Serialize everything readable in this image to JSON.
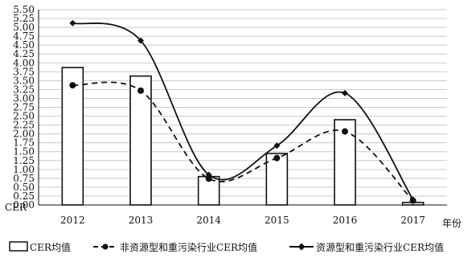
{
  "chart_data": {
    "type": "bar",
    "categories": [
      "2012",
      "2013",
      "2014",
      "2015",
      "2016",
      "2017"
    ],
    "xlabel": "年份",
    "ylabel": "CER",
    "ylim": [
      0,
      5.5
    ],
    "yticks": [
      "0.00",
      "0.25",
      "0.50",
      "0.75",
      "1.00",
      "1.25",
      "1.50",
      "1.75",
      "2.00",
      "2.25",
      "2.50",
      "2.75",
      "3.00",
      "3.25",
      "3.50",
      "3.75",
      "4.00",
      "4.25",
      "4.50",
      "4.75",
      "5.00",
      "5.25",
      "5.50"
    ],
    "grid": true,
    "legend_position": "bottom",
    "series": [
      {
        "name": "CER均值",
        "kind": "bar",
        "values": [
          3.87,
          3.63,
          0.8,
          1.45,
          2.4,
          0.07
        ]
      },
      {
        "name": "非资源型和重污染行业CER均值",
        "kind": "line-dashed-circle",
        "values": [
          3.37,
          3.22,
          0.74,
          1.32,
          2.07,
          0.12
        ]
      },
      {
        "name": "资源型和重污染行业CER均值",
        "kind": "line-solid-diamond",
        "values": [
          5.12,
          4.63,
          0.85,
          1.67,
          3.15,
          0.15
        ]
      }
    ]
  }
}
